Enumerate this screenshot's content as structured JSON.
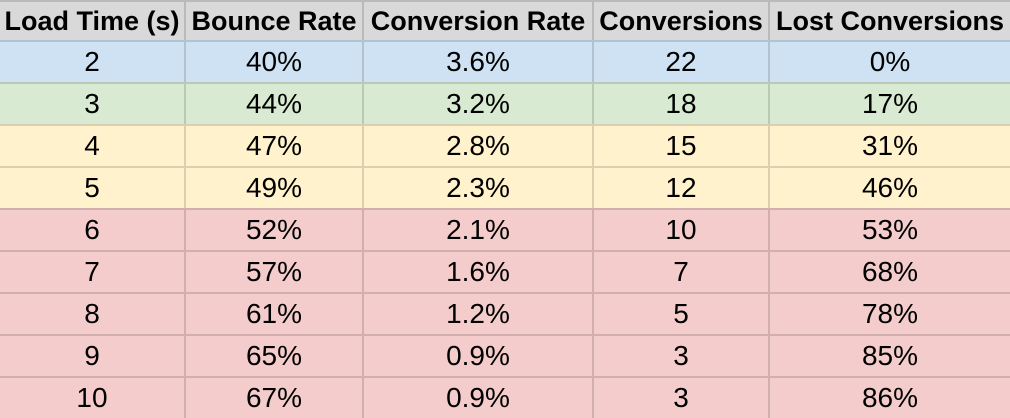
{
  "chart_data": {
    "type": "table",
    "columns": [
      "Load Time (s)",
      "Bounce Rate",
      "Conversion Rate",
      "Conversions",
      "Lost Conversions"
    ],
    "rows": [
      [
        "2",
        "40%",
        "3.6%",
        "22",
        "0%"
      ],
      [
        "3",
        "44%",
        "3.2%",
        "18",
        "17%"
      ],
      [
        "4",
        "47%",
        "2.8%",
        "15",
        "31%"
      ],
      [
        "5",
        "49%",
        "2.3%",
        "12",
        "46%"
      ],
      [
        "6",
        "52%",
        "2.1%",
        "10",
        "53%"
      ],
      [
        "7",
        "57%",
        "1.6%",
        "7",
        "68%"
      ],
      [
        "8",
        "61%",
        "1.2%",
        "5",
        "78%"
      ],
      [
        "9",
        "65%",
        "0.9%",
        "3",
        "85%"
      ],
      [
        "10",
        "67%",
        "0.9%",
        "3",
        "86%"
      ]
    ],
    "row_tiers": [
      "blue",
      "green",
      "yellow",
      "yellow",
      "red",
      "red",
      "red",
      "red",
      "red"
    ],
    "legend_position": "none",
    "grid": true
  },
  "colors": {
    "header_bg": "#d9d9d9",
    "tier_blue": "#cfe2f3",
    "tier_green": "#d9ead3",
    "tier_yellow": "#fff2cc",
    "tier_red": "#f4cccc",
    "text": "#000000"
  }
}
